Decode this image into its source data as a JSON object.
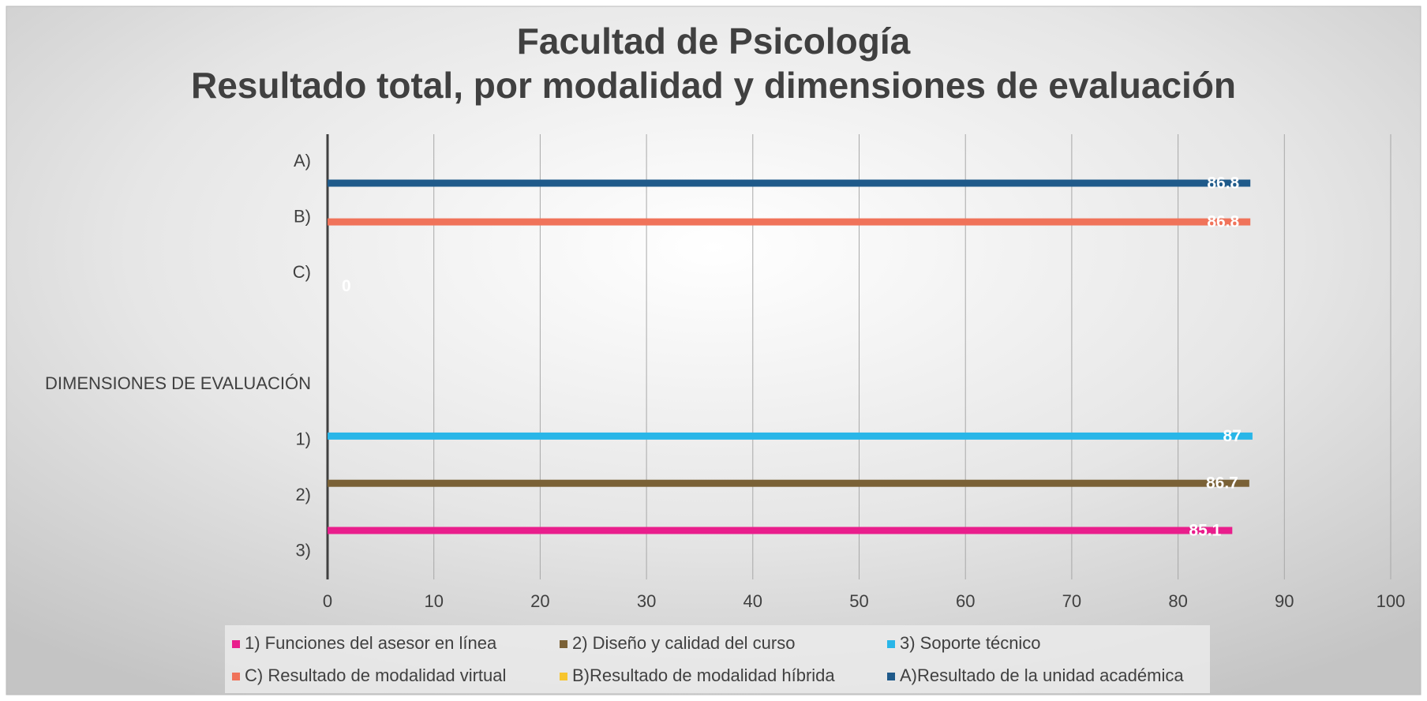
{
  "chart_data": {
    "type": "bar",
    "orientation": "horizontal",
    "title": "Facultad de Psicología",
    "subtitle": "Resultado total, por modalidad y dimensiones de evaluación",
    "categories": [
      "A)",
      "B)",
      "C)",
      null,
      "DIMENSIONES DE EVALUACIÓN",
      "1)",
      "2)",
      "3)"
    ],
    "series": [
      {
        "name": "1) Funciones del asesor en línea",
        "color": "#e91e8c",
        "values": [
          null,
          null,
          null,
          null,
          null,
          null,
          null,
          85.1
        ]
      },
      {
        "name": "2) Diseño y calidad del curso",
        "color": "#7a6136",
        "values": [
          null,
          null,
          null,
          null,
          null,
          null,
          86.7,
          null
        ]
      },
      {
        "name": "3) Soporte técnico",
        "color": "#29b6e8",
        "values": [
          null,
          null,
          null,
          null,
          null,
          87,
          null,
          null
        ]
      },
      {
        "name": "C) Resultado de modalidad virtual",
        "color": "#f0735a",
        "values": [
          null,
          86.8,
          null,
          null,
          null,
          null,
          null,
          null
        ]
      },
      {
        "name": "B)Resultado de modalidad híbrida",
        "color": "#f7c52e",
        "values": [
          null,
          null,
          0,
          null,
          null,
          null,
          null,
          null
        ]
      },
      {
        "name": "A)Resultado de la unidad académica",
        "color": "#1f5a8a",
        "values": [
          86.8,
          null,
          null,
          null,
          null,
          null,
          null,
          null
        ]
      }
    ],
    "xlim": [
      0,
      100
    ],
    "xticks": [
      0,
      10,
      20,
      30,
      40,
      50,
      60,
      70,
      80,
      90,
      100
    ],
    "grid": true,
    "legend": "bottom"
  }
}
